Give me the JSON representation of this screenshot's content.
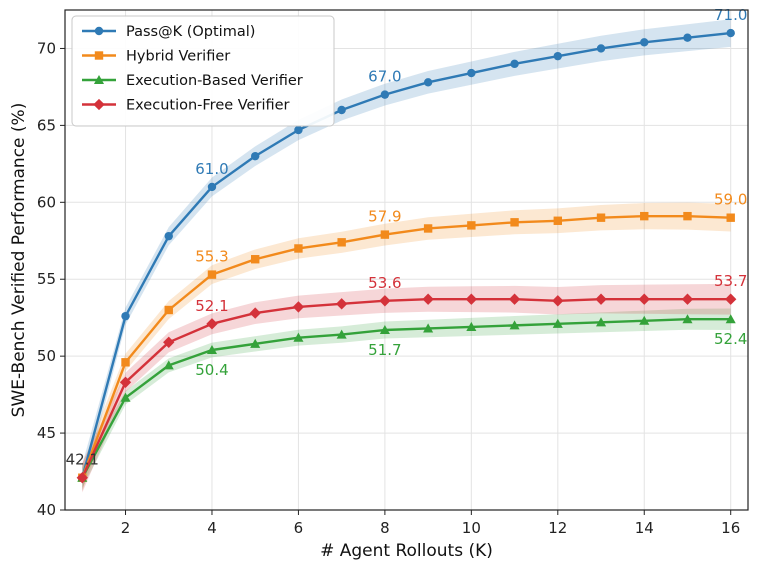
{
  "chart_data": {
    "type": "line",
    "xlabel": "# Agent Rollouts (K)",
    "ylabel": "SWE-Bench Verified Performance (%)",
    "xlim": [
      0.6,
      16.4
    ],
    "ylim": [
      40,
      72.5
    ],
    "xticks": [
      2,
      4,
      6,
      8,
      10,
      12,
      14,
      16
    ],
    "yticks": [
      40,
      45,
      50,
      55,
      60,
      65,
      70
    ],
    "grid": true,
    "legend_position": "top-left",
    "x": [
      1,
      2,
      3,
      4,
      5,
      6,
      7,
      8,
      9,
      10,
      11,
      12,
      13,
      14,
      15,
      16
    ],
    "series": [
      {
        "name": "Pass@K (Optimal)",
        "color": "#2f7ab5",
        "marker": "circle",
        "values": [
          42.1,
          52.6,
          57.8,
          61.0,
          63.0,
          64.7,
          66.0,
          67.0,
          67.8,
          68.4,
          69.0,
          69.5,
          70.0,
          70.4,
          70.7,
          71.0
        ],
        "band": 0.9,
        "annotations": [
          {
            "x": 4,
            "text": "61.0",
            "pos": "above"
          },
          {
            "x": 8,
            "text": "67.0",
            "pos": "above"
          },
          {
            "x": 16,
            "text": "71.0",
            "pos": "above"
          }
        ]
      },
      {
        "name": "Hybrid Verifier",
        "color": "#f28a1c",
        "marker": "square",
        "values": [
          42.1,
          49.6,
          53.0,
          55.3,
          56.3,
          57.0,
          57.4,
          57.9,
          58.3,
          58.5,
          58.7,
          58.8,
          59.0,
          59.1,
          59.1,
          59.0
        ],
        "band": 0.9,
        "annotations": [
          {
            "x": 4,
            "text": "55.3",
            "pos": "above"
          },
          {
            "x": 8,
            "text": "57.9",
            "pos": "above"
          },
          {
            "x": 16,
            "text": "59.0",
            "pos": "above"
          }
        ]
      },
      {
        "name": "Execution-Based Verifier",
        "color": "#34a23a",
        "marker": "triangle",
        "values": [
          42.1,
          47.3,
          49.4,
          50.4,
          50.8,
          51.2,
          51.4,
          51.7,
          51.8,
          51.9,
          52.0,
          52.1,
          52.2,
          52.3,
          52.4,
          52.4
        ],
        "band": 0.7,
        "annotations": [
          {
            "x": 4,
            "text": "50.4",
            "pos": "below"
          },
          {
            "x": 8,
            "text": "51.7",
            "pos": "below"
          },
          {
            "x": 16,
            "text": "52.4",
            "pos": "below"
          }
        ]
      },
      {
        "name": "Execution-Free Verifier",
        "color": "#d4323a",
        "marker": "diamond",
        "values": [
          42.1,
          48.3,
          50.9,
          52.1,
          52.8,
          53.2,
          53.4,
          53.6,
          53.7,
          53.7,
          53.7,
          53.6,
          53.7,
          53.7,
          53.7,
          53.7
        ],
        "band": 1.0,
        "annotations": [
          {
            "x": 4,
            "text": "52.1",
            "pos": "above"
          },
          {
            "x": 8,
            "text": "53.6",
            "pos": "above"
          },
          {
            "x": 16,
            "text": "53.7",
            "pos": "above"
          }
        ]
      }
    ],
    "shared_annotation": {
      "x": 1,
      "y": 42.1,
      "text": "42.1",
      "color": "#333333"
    }
  }
}
